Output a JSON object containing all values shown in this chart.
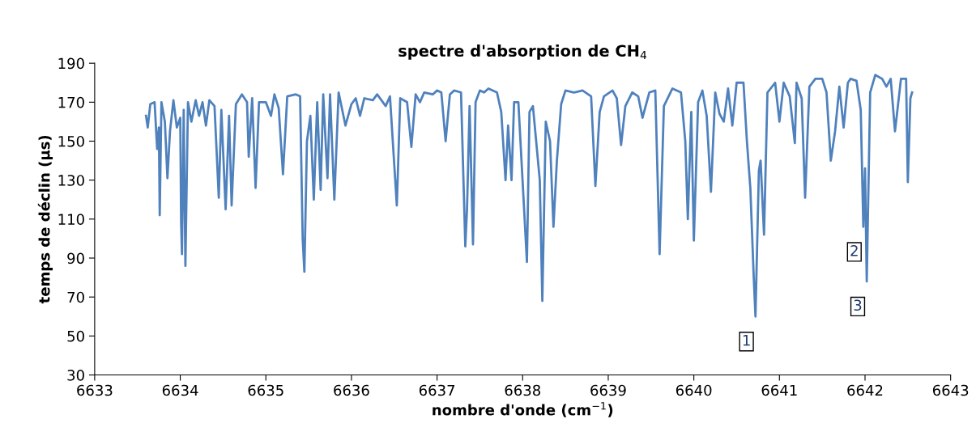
{
  "chart_data": {
    "type": "line",
    "title": "spectre d'absorption de CH$_{4}$",
    "xlabel": "nombre d'onde (cm$^{−1}$)",
    "ylabel": "temps de déclin (µs)",
    "xlim": [
      6633,
      6643
    ],
    "xticks": [
      6633,
      6634,
      6635,
      6636,
      6637,
      6638,
      6639,
      6640,
      6641,
      6642,
      6643
    ],
    "ylim": [
      30,
      190
    ],
    "yticks": [
      30,
      50,
      70,
      90,
      110,
      130,
      150,
      170,
      190
    ],
    "grid": false,
    "marker": "none",
    "line_style": "solid",
    "annotations": [
      {
        "text": "1",
        "x": 6640.72,
        "y": 60
      },
      {
        "text": "2",
        "x": 6641.98,
        "y": 106
      },
      {
        "text": "3",
        "x": 6642.02,
        "y": 78
      }
    ],
    "series": [
      {
        "color": "#4f81bd",
        "x": [
          6633.6,
          6633.62,
          6633.65,
          6633.7,
          6633.73,
          6633.75,
          6633.76,
          6633.78,
          6633.82,
          6633.85,
          6633.88,
          6633.92,
          6633.96,
          6634.0,
          6634.01,
          6634.02,
          6634.04,
          6634.06,
          6634.09,
          6634.13,
          6634.18,
          6634.22,
          6634.26,
          6634.3,
          6634.34,
          6634.4,
          6634.45,
          6634.48,
          6634.53,
          6634.57,
          6634.6,
          6634.65,
          6634.72,
          6634.78,
          6634.8,
          6634.84,
          6634.88,
          6634.92,
          6635.0,
          6635.06,
          6635.1,
          6635.15,
          6635.2,
          6635.25,
          6635.35,
          6635.4,
          6635.43,
          6635.45,
          6635.48,
          6635.52,
          6635.56,
          6635.6,
          6635.64,
          6635.67,
          6635.72,
          6635.75,
          6635.8,
          6635.85,
          6635.93,
          6636.0,
          6636.05,
          6636.1,
          6636.15,
          6636.25,
          6636.3,
          6636.4,
          6636.45,
          6636.53,
          6636.57,
          6636.65,
          6636.7,
          6636.75,
          6636.8,
          6636.85,
          6636.95,
          6637.0,
          6637.05,
          6637.1,
          6637.15,
          6637.2,
          6637.28,
          6637.33,
          6637.35,
          6637.38,
          6637.42,
          6637.45,
          6637.5,
          6637.55,
          6637.6,
          6637.7,
          6637.75,
          6637.8,
          6637.83,
          6637.87,
          6637.9,
          6637.95,
          6638.05,
          6638.08,
          6638.12,
          6638.2,
          6638.23,
          6638.27,
          6638.32,
          6638.36,
          6638.4,
          6638.45,
          6638.5,
          6638.6,
          6638.7,
          6638.8,
          6638.85,
          6638.9,
          6638.95,
          6639.05,
          6639.1,
          6639.15,
          6639.2,
          6639.28,
          6639.35,
          6639.4,
          6639.48,
          6639.55,
          6639.6,
          6639.65,
          6639.75,
          6639.85,
          6639.9,
          6639.93,
          6639.97,
          6640.0,
          6640.05,
          6640.1,
          6640.15,
          6640.2,
          6640.25,
          6640.3,
          6640.35,
          6640.4,
          6640.45,
          6640.5,
          6640.58,
          6640.62,
          6640.66,
          6640.7,
          6640.72,
          6640.76,
          6640.78,
          6640.82,
          6640.86,
          6640.95,
          6641.0,
          6641.05,
          6641.12,
          6641.18,
          6641.2,
          6641.26,
          6641.3,
          6641.35,
          6641.42,
          6641.5,
          6641.55,
          6641.6,
          6641.65,
          6641.7,
          6641.75,
          6641.8,
          6641.83,
          6641.9,
          6641.95,
          6641.98,
          6642.0,
          6642.02,
          6642.06,
          6642.12,
          6642.2,
          6642.25,
          6642.3,
          6642.35,
          6642.42,
          6642.48,
          6642.5,
          6642.53,
          6642.55
        ],
        "values": [
          163,
          157,
          169,
          170,
          146,
          157,
          112,
          170,
          160,
          131,
          155,
          171,
          157,
          162,
          108,
          92,
          166,
          86,
          170,
          160,
          171,
          163,
          170,
          158,
          171,
          168,
          121,
          166,
          115,
          163,
          117,
          169,
          174,
          170,
          142,
          172,
          126,
          170,
          170,
          163,
          174,
          167,
          133,
          173,
          174,
          173,
          100,
          83,
          150,
          163,
          120,
          170,
          125,
          174,
          131,
          174,
          120,
          175,
          158,
          169,
          172,
          163,
          172,
          171,
          174,
          168,
          173,
          117,
          172,
          170,
          147,
          174,
          170,
          175,
          174,
          176,
          175,
          150,
          174,
          176,
          175,
          96,
          115,
          168,
          97,
          170,
          176,
          175,
          177,
          175,
          165,
          130,
          158,
          130,
          170,
          170,
          88,
          165,
          168,
          130,
          68,
          160,
          150,
          106,
          140,
          169,
          176,
          175,
          176,
          173,
          127,
          165,
          173,
          176,
          172,
          148,
          168,
          175,
          173,
          162,
          175,
          176,
          92,
          168,
          177,
          175,
          150,
          110,
          165,
          99,
          170,
          176,
          163,
          124,
          175,
          164,
          160,
          177,
          158,
          180,
          180,
          150,
          126,
          80,
          60,
          135,
          140,
          102,
          175,
          180,
          160,
          180,
          173,
          149,
          180,
          172,
          121,
          178,
          182,
          182,
          175,
          140,
          155,
          178,
          157,
          180,
          182,
          181,
          166,
          106,
          136,
          78,
          175,
          184,
          182,
          178,
          182,
          155,
          182,
          182,
          129,
          172,
          175
        ]
      }
    ]
  }
}
